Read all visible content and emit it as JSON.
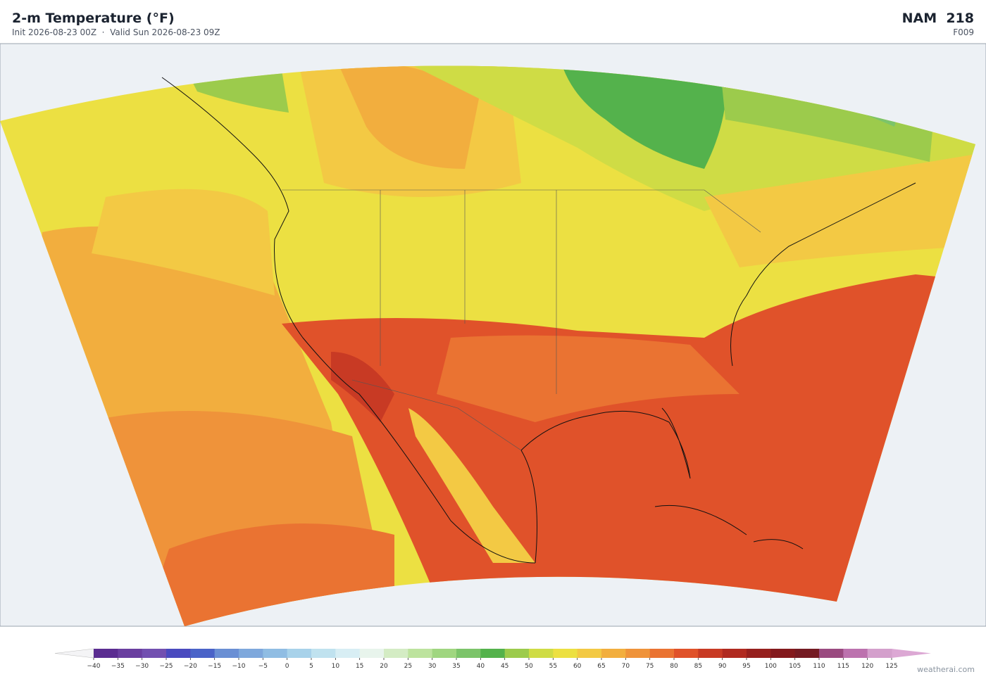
{
  "header": {
    "title": "2-m Temperature  (°F)",
    "subtitle": "Init 2026-08-23 00Z  ·  Valid Sun 2026-08-23 09Z",
    "model": "NAM  218",
    "forecast_hour": "F009"
  },
  "colorbar": {
    "ticks": [
      {
        "value": -40,
        "label": "−40"
      },
      {
        "value": -35,
        "label": "−35"
      },
      {
        "value": -30,
        "label": "−30"
      },
      {
        "value": -25,
        "label": "−25"
      },
      {
        "value": -20,
        "label": "−20"
      },
      {
        "value": -15,
        "label": "−15"
      },
      {
        "value": -10,
        "label": "−10"
      },
      {
        "value": -5,
        "label": "−5"
      },
      0,
      5,
      10,
      15,
      20,
      25,
      30,
      35,
      40,
      45,
      50,
      55,
      60,
      65,
      70,
      75,
      80,
      85,
      90,
      95,
      100,
      105,
      110,
      115,
      120,
      125
    ],
    "colors": [
      "#5b2d91",
      "#6a3fa0",
      "#7250b0",
      "#4a4abf",
      "#4a63c8",
      "#6a8fd4",
      "#7ea8dc",
      "#90bde3",
      "#a8d2ea",
      "#c0e2ef",
      "#d8eef4",
      "#e8f4ec",
      "#d4ecc4",
      "#bde39e",
      "#a0d680",
      "#7cc46a",
      "#54b24c",
      "#9ccb4c",
      "#cfdc45",
      "#ece042",
      "#f3c944",
      "#f2ae3e",
      "#ef933a",
      "#ea7332",
      "#e0522a",
      "#c83a24",
      "#b02a20",
      "#96201e",
      "#83191c",
      "#741a22",
      "#9a4a80",
      "#bc72ae",
      "#d4a0cc"
    ],
    "under_color": "#f4f4f6",
    "over_color": "#dca8d4"
  },
  "credit": "weatherai.com"
}
